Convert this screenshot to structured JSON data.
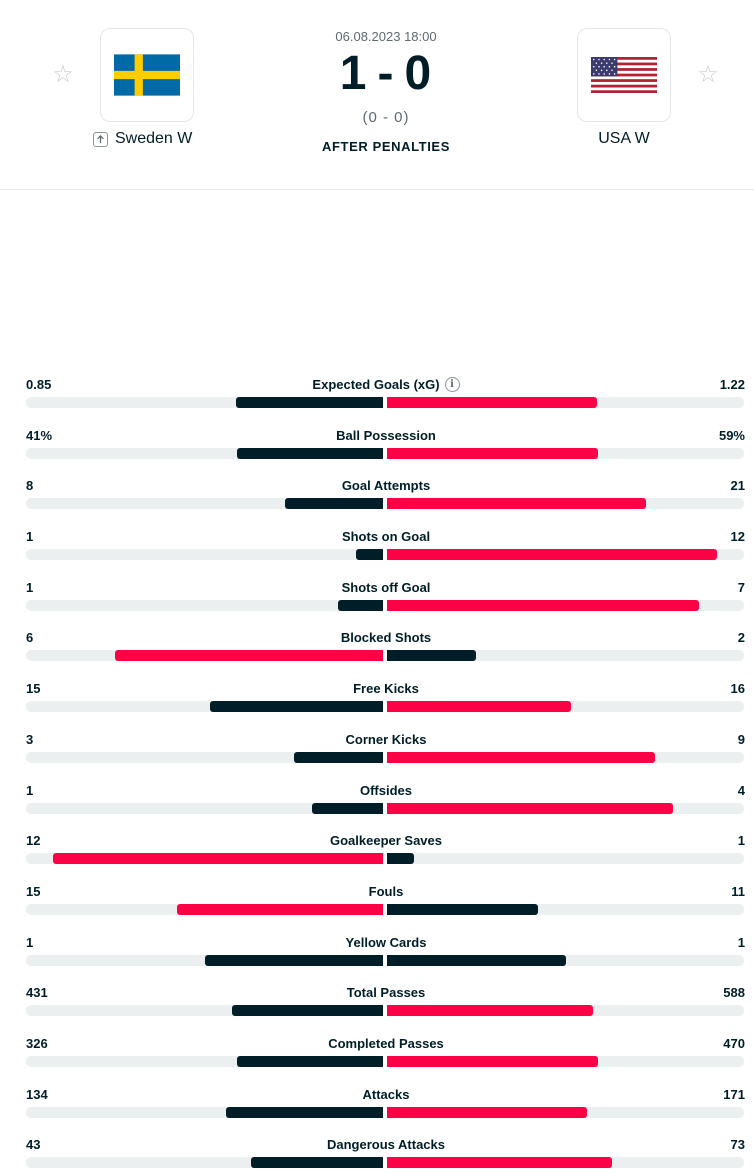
{
  "match": {
    "datetime": "06.08.2023 18:00",
    "score_home": "1",
    "score_sep": "-",
    "score_away": "0",
    "halftime": "(0 - 0)",
    "status": "AFTER PENALTIES"
  },
  "home": {
    "name": "Sweden W",
    "favorite_icon": "star-icon",
    "flag": "sweden-flag"
  },
  "away": {
    "name": "USA W",
    "favorite_icon": "star-icon",
    "flag": "usa-flag"
  },
  "colors": {
    "dark": "#001e28",
    "accent": "#ff0046",
    "track": "#eceff0"
  },
  "stats": [
    {
      "label": "Expected Goals (xG)",
      "home": "0.85",
      "away": "1.22",
      "home_val": 0.85,
      "away_val": 1.22,
      "info": true
    },
    {
      "label": "Ball Possession",
      "home": "41%",
      "away": "59%",
      "home_val": 41,
      "away_val": 59
    },
    {
      "label": "Goal Attempts",
      "home": "8",
      "away": "21",
      "home_val": 8,
      "away_val": 21
    },
    {
      "label": "Shots on Goal",
      "home": "1",
      "away": "12",
      "home_val": 1,
      "away_val": 12
    },
    {
      "label": "Shots off Goal",
      "home": "1",
      "away": "7",
      "home_val": 1,
      "away_val": 7
    },
    {
      "label": "Blocked Shots",
      "home": "6",
      "away": "2",
      "home_val": 6,
      "away_val": 2
    },
    {
      "label": "Free Kicks",
      "home": "15",
      "away": "16",
      "home_val": 15,
      "away_val": 16
    },
    {
      "label": "Corner Kicks",
      "home": "3",
      "away": "9",
      "home_val": 3,
      "away_val": 9
    },
    {
      "label": "Offsides",
      "home": "1",
      "away": "4",
      "home_val": 1,
      "away_val": 4
    },
    {
      "label": "Goalkeeper Saves",
      "home": "12",
      "away": "1",
      "home_val": 12,
      "away_val": 1
    },
    {
      "label": "Fouls",
      "home": "15",
      "away": "11",
      "home_val": 15,
      "away_val": 11
    },
    {
      "label": "Yellow Cards",
      "home": "1",
      "away": "1",
      "home_val": 1,
      "away_val": 1
    },
    {
      "label": "Total Passes",
      "home": "431",
      "away": "588",
      "home_val": 431,
      "away_val": 588
    },
    {
      "label": "Completed Passes",
      "home": "326",
      "away": "470",
      "home_val": 326,
      "away_val": 470
    },
    {
      "label": "Attacks",
      "home": "134",
      "away": "171",
      "home_val": 134,
      "away_val": 171
    },
    {
      "label": "Dangerous Attacks",
      "home": "43",
      "away": "73",
      "home_val": 43,
      "away_val": 73
    }
  ]
}
